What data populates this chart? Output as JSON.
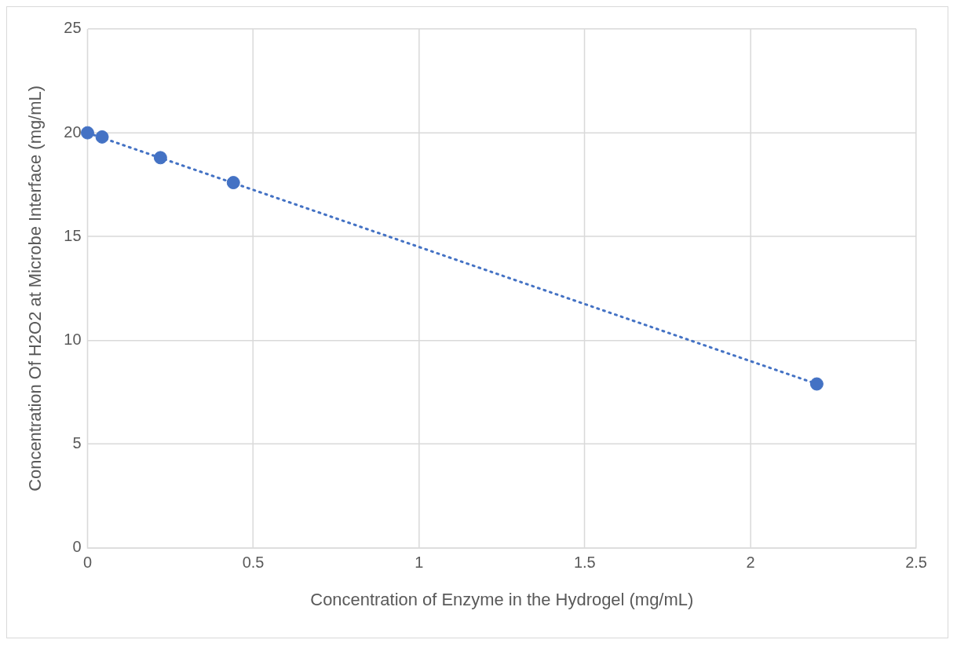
{
  "chart_data": {
    "type": "scatter",
    "xlabel": "Concentration of Enzyme in the Hydrogel (mg/mL)",
    "ylabel": "Concentration Of H2O2 at Microbe Interface (mg/mL)",
    "xlim": [
      0,
      2.5
    ],
    "xticks": [
      0,
      0.5,
      1,
      1.5,
      2,
      2.5
    ],
    "ylim": [
      0,
      25
    ],
    "yticks": [
      0,
      5,
      10,
      15,
      20,
      25
    ],
    "grid": true,
    "legend": false,
    "series": [
      {
        "type": "scatter",
        "color": "#4472c4",
        "x": [
          0,
          0.044,
          0.22,
          0.44,
          2.2
        ],
        "values": [
          20,
          19.8,
          18.8,
          17.6,
          7.9
        ],
        "marker": "circle"
      },
      {
        "type": "line",
        "color": "#4472c4",
        "x": [
          0,
          2.2
        ],
        "values": [
          20,
          7.9
        ],
        "marker": "none",
        "line_style": "dotted"
      }
    ]
  }
}
